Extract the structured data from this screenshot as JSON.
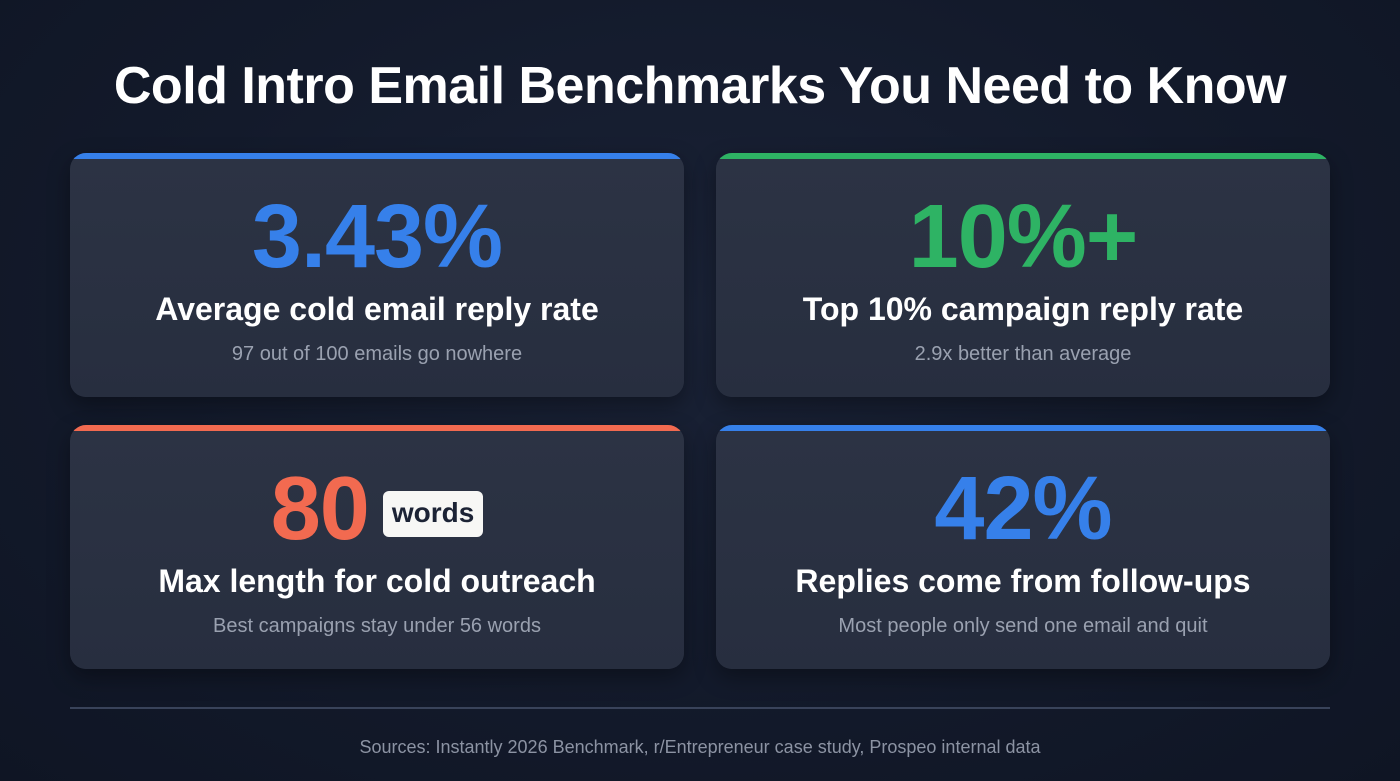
{
  "header": {
    "title": "Cold Intro Email Benchmarks You Need to Know"
  },
  "colors": {
    "background": "#131a2b",
    "card": "#2a3142",
    "blue": "#3680ea",
    "green": "#2eb364",
    "coral": "#f26a50",
    "label": "#ffffff",
    "sub": "#9aa1b0"
  },
  "cards": [
    {
      "value": "3.43%",
      "unit": "",
      "label": "Average cold email reply rate",
      "sub": "97 out of 100 emails go nowhere",
      "accent": "#3680ea"
    },
    {
      "value": "10%+",
      "unit": "",
      "label": "Top 10% campaign reply rate",
      "sub": "2.9x better than average",
      "accent": "#2eb364"
    },
    {
      "value": "80",
      "unit": "words",
      "label": "Max length for cold outreach",
      "sub": "Best campaigns stay under 56 words",
      "accent": "#f26a50"
    },
    {
      "value": "42%",
      "unit": "",
      "label": "Replies come from follow-ups",
      "sub": "Most people only send one email and quit",
      "accent": "#3680ea"
    }
  ],
  "footer": {
    "sources": "Sources: Instantly 2026 Benchmark, r/Entrepreneur case study, Prospeo internal data"
  }
}
